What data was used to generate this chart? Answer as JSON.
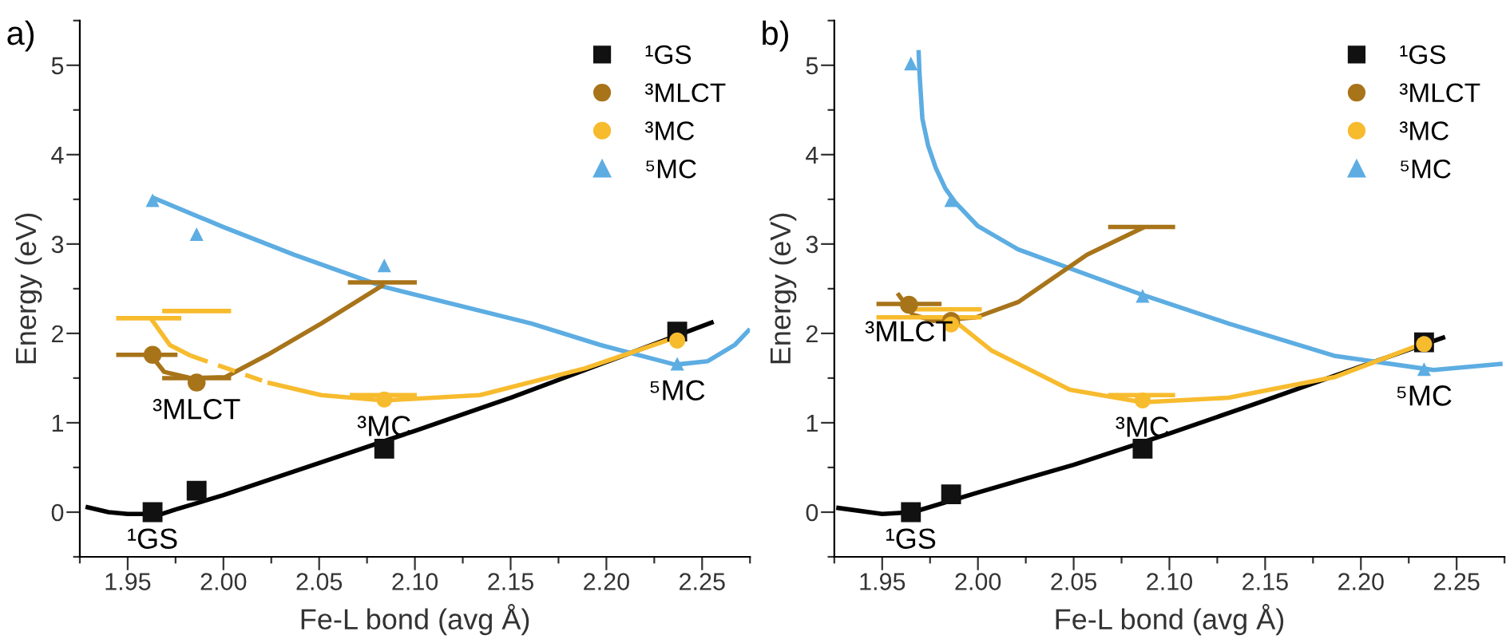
{
  "chart_data": [
    {
      "type": "scatter",
      "title": "a)",
      "xlabel": "Fe-L bond (avg Å)",
      "ylabel": "Energy (eV)",
      "xlim": [
        1.925,
        2.275
      ],
      "ylim": [
        -0.5,
        5.5
      ],
      "xticks": [
        {
          "value": 1.925,
          "label": null
        },
        {
          "value": 1.95,
          "label": "1.95"
        },
        {
          "value": 1.975,
          "label": null
        },
        {
          "value": 2.0,
          "label": "2.00"
        },
        {
          "value": 2.025,
          "label": null
        },
        {
          "value": 2.05,
          "label": "2.05"
        },
        {
          "value": 2.075,
          "label": null
        },
        {
          "value": 2.1,
          "label": "2.10"
        },
        {
          "value": 2.125,
          "label": null
        },
        {
          "value": 2.15,
          "label": "2.15"
        },
        {
          "value": 2.175,
          "label": null
        },
        {
          "value": 2.2,
          "label": "2.20"
        },
        {
          "value": 2.225,
          "label": null
        },
        {
          "value": 2.25,
          "label": "2.25"
        },
        {
          "value": 2.275,
          "label": null
        }
      ],
      "yticks": [
        {
          "value": -0.5,
          "label": null
        },
        0,
        {
          "value": 0.5,
          "label": null
        },
        1,
        {
          "value": 1.5,
          "label": null
        },
        2,
        {
          "value": 2.5,
          "label": null
        },
        3,
        {
          "value": 3.5,
          "label": null
        },
        4,
        {
          "value": 4.5,
          "label": null
        },
        5,
        {
          "value": 5.5,
          "label": null
        }
      ],
      "legend": "top right",
      "annotations": [
        {
          "text": "¹GS",
          "x": 1.963,
          "y": 0.0
        },
        {
          "text": "³MLCT",
          "x": 1.986,
          "y": 1.45
        },
        {
          "text": "³MC",
          "x": 2.084,
          "y": 1.26
        },
        {
          "text": "⁵MC",
          "x": 2.237,
          "y": 1.66
        }
      ],
      "series": [
        {
          "type": "line",
          "color": "#000000",
          "x": [
            1.928,
            1.94,
            1.95,
            1.968,
            1.975,
            2.0,
            2.05,
            2.1,
            2.15,
            2.2,
            2.256
          ],
          "values": [
            0.06,
            0.0,
            -0.02,
            -0.02,
            0.03,
            0.19,
            0.55,
            0.91,
            1.28,
            1.68,
            2.13
          ]
        },
        {
          "type": "line",
          "color": "#5dade2",
          "x": [
            1.963,
            2.0,
            2.037,
            2.084,
            2.161,
            2.197,
            2.236,
            2.253,
            2.267,
            2.275
          ],
          "values": [
            3.52,
            3.19,
            2.88,
            2.52,
            2.11,
            1.87,
            1.65,
            1.69,
            1.87,
            2.05
          ]
        },
        {
          "type": "line",
          "color": "#a8741a",
          "x": [
            1.962,
            1.969,
            1.983,
            2.001,
            2.023,
            2.051,
            2.084
          ],
          "values": [
            1.76,
            1.57,
            1.5,
            1.51,
            1.76,
            2.11,
            2.55
          ]
        },
        {
          "type": "line",
          "color": "#f7bb2e",
          "x": [
            1.962,
            1.972,
            1.983
          ],
          "values": [
            2.17,
            1.87,
            1.75
          ]
        },
        {
          "type": "line",
          "color": "#f7bb2e",
          "line_style": "dashed",
          "x": [
            1.983,
            2.023
          ],
          "values": [
            1.75,
            1.45
          ]
        },
        {
          "type": "line",
          "color": "#f7bb2e",
          "x": [
            2.023,
            2.051,
            2.084,
            2.134,
            2.189,
            2.237
          ],
          "values": [
            1.45,
            1.31,
            1.25,
            1.31,
            1.61,
            1.96
          ]
        },
        {
          "type": "line",
          "color": "#a8741a",
          "x": [
            1.944,
            1.976
          ],
          "values": [
            1.76,
            1.76
          ]
        },
        {
          "type": "line",
          "color": "#a8741a",
          "x": [
            1.968,
            2.004
          ],
          "values": [
            1.5,
            1.5
          ]
        },
        {
          "type": "line",
          "color": "#a8741a",
          "x": [
            2.065,
            2.101
          ],
          "values": [
            2.57,
            2.57
          ]
        },
        {
          "type": "line",
          "color": "#f7bb2e",
          "x": [
            1.944,
            1.978
          ],
          "values": [
            2.17,
            2.17
          ]
        },
        {
          "type": "line",
          "color": "#f7bb2e",
          "x": [
            1.968,
            2.004
          ],
          "values": [
            2.25,
            2.25
          ]
        },
        {
          "type": "line",
          "color": "#f7bb2e",
          "x": [
            2.066,
            2.101
          ],
          "values": [
            1.31,
            1.31
          ]
        },
        {
          "name": "¹GS",
          "marker": "square",
          "color": "#111111",
          "x": [
            1.963,
            1.986,
            2.084,
            2.237
          ],
          "values": [
            0.0,
            0.24,
            0.71,
            2.02
          ]
        },
        {
          "name": "³MLCT",
          "marker": "circle",
          "color": "#a8741a",
          "x": [
            1.963,
            1.986
          ],
          "values": [
            1.76,
            1.45
          ]
        },
        {
          "name": "³MC",
          "marker": "circle",
          "color": "#f7bb2e",
          "x": [
            2.084,
            2.237
          ],
          "values": [
            1.26,
            1.92
          ]
        },
        {
          "name": "⁵MC",
          "marker": "triangle",
          "color": "#5dade2",
          "x": [
            1.963,
            1.986,
            2.084,
            2.237
          ],
          "values": [
            3.49,
            3.11,
            2.76,
            1.66
          ]
        }
      ]
    },
    {
      "type": "scatter",
      "title": "b)",
      "xlabel": "Fe-L bond (avg Å)",
      "ylabel": "Energy (eV)",
      "xlim": [
        1.925,
        2.275
      ],
      "ylim": [
        -0.5,
        5.5
      ],
      "xticks": [
        {
          "value": 1.925,
          "label": null
        },
        {
          "value": 1.95,
          "label": "1.95"
        },
        {
          "value": 1.975,
          "label": null
        },
        {
          "value": 2.0,
          "label": "2.00"
        },
        {
          "value": 2.025,
          "label": null
        },
        {
          "value": 2.05,
          "label": "2.05"
        },
        {
          "value": 2.075,
          "label": null
        },
        {
          "value": 2.1,
          "label": "2.10"
        },
        {
          "value": 2.125,
          "label": null
        },
        {
          "value": 2.15,
          "label": "2.15"
        },
        {
          "value": 2.175,
          "label": null
        },
        {
          "value": 2.2,
          "label": "2.20"
        },
        {
          "value": 2.225,
          "label": null
        },
        {
          "value": 2.25,
          "label": "2.25"
        },
        {
          "value": 2.275,
          "label": null
        }
      ],
      "yticks": [
        {
          "value": -0.5,
          "label": null
        },
        0,
        {
          "value": 0.5,
          "label": null
        },
        1,
        {
          "value": 1.5,
          "label": null
        },
        2,
        {
          "value": 2.5,
          "label": null
        },
        3,
        {
          "value": 3.5,
          "label": null
        },
        4,
        {
          "value": 4.5,
          "label": null
        },
        5,
        {
          "value": 5.5,
          "label": null
        }
      ],
      "legend": "top right",
      "annotations": [
        {
          "text": "¹GS",
          "x": 1.965,
          "y": 0.0
        },
        {
          "text": "³MLCT",
          "x": 1.964,
          "y": 2.32
        },
        {
          "text": "³MC",
          "x": 2.086,
          "y": 1.25
        },
        {
          "text": "⁵MC",
          "x": 2.233,
          "y": 1.6
        }
      ],
      "series": [
        {
          "type": "line",
          "color": "#000000",
          "x": [
            1.926,
            1.95,
            1.966,
            2.0,
            2.05,
            2.1,
            2.15,
            2.2,
            2.244
          ],
          "values": [
            0.05,
            -0.02,
            0.0,
            0.22,
            0.53,
            0.88,
            1.25,
            1.63,
            1.96
          ]
        },
        {
          "type": "line",
          "color": "#5dade2",
          "x": [
            1.969,
            1.9695,
            1.971,
            1.974,
            1.978,
            1.983,
            1.988,
            2.0,
            2.021,
            2.086,
            2.131,
            2.186,
            2.238,
            2.274
          ],
          "values": [
            5.17,
            4.9,
            4.4,
            4.1,
            3.85,
            3.62,
            3.47,
            3.2,
            2.94,
            2.43,
            2.11,
            1.75,
            1.59,
            1.66
          ]
        },
        {
          "type": "line",
          "color": "#a8741a",
          "x": [
            1.958,
            1.966,
            1.977,
            1.999,
            2.021,
            2.057,
            2.087
          ],
          "values": [
            2.45,
            2.21,
            2.14,
            2.18,
            2.35,
            2.88,
            3.19
          ]
        },
        {
          "type": "line",
          "color": "#f7bb2e",
          "x": [
            1.986,
            2.007,
            2.048,
            2.086,
            2.131,
            2.186,
            2.238
          ],
          "values": [
            2.17,
            1.81,
            1.37,
            1.23,
            1.28,
            1.51,
            1.93
          ]
        },
        {
          "type": "line",
          "color": "#a8741a",
          "x": [
            1.947,
            1.981
          ],
          "values": [
            2.33,
            2.33
          ]
        },
        {
          "type": "line",
          "color": "#a8741a",
          "x": [
            2.068,
            2.103
          ],
          "values": [
            3.19,
            3.19
          ]
        },
        {
          "type": "line",
          "color": "#f7bb2e",
          "x": [
            1.947,
            2.002
          ],
          "values": [
            2.18,
            2.18
          ]
        },
        {
          "type": "line",
          "color": "#f7bb2e",
          "x": [
            1.966,
            2.002
          ],
          "values": [
            2.27,
            2.27
          ]
        },
        {
          "type": "line",
          "color": "#f7bb2e",
          "x": [
            2.068,
            2.103
          ],
          "values": [
            1.31,
            1.31
          ]
        },
        {
          "name": "¹GS",
          "marker": "square",
          "color": "#111111",
          "x": [
            1.965,
            1.986,
            2.086,
            2.233
          ],
          "values": [
            0.0,
            0.2,
            0.71,
            1.9
          ]
        },
        {
          "name": "³MLCT",
          "marker": "circle",
          "color": "#a8741a",
          "x": [
            1.964,
            1.986
          ],
          "values": [
            2.32,
            2.14
          ]
        },
        {
          "name": "³MC",
          "marker": "circle",
          "color": "#f7bb2e",
          "x": [
            1.986,
            2.086,
            2.233
          ],
          "values": [
            2.1,
            1.25,
            1.88
          ]
        },
        {
          "name": "⁵MC",
          "marker": "triangle",
          "color": "#5dade2",
          "x": [
            1.965,
            1.986,
            2.086,
            2.233
          ],
          "values": [
            5.02,
            3.49,
            2.42,
            1.6
          ]
        }
      ]
    }
  ]
}
